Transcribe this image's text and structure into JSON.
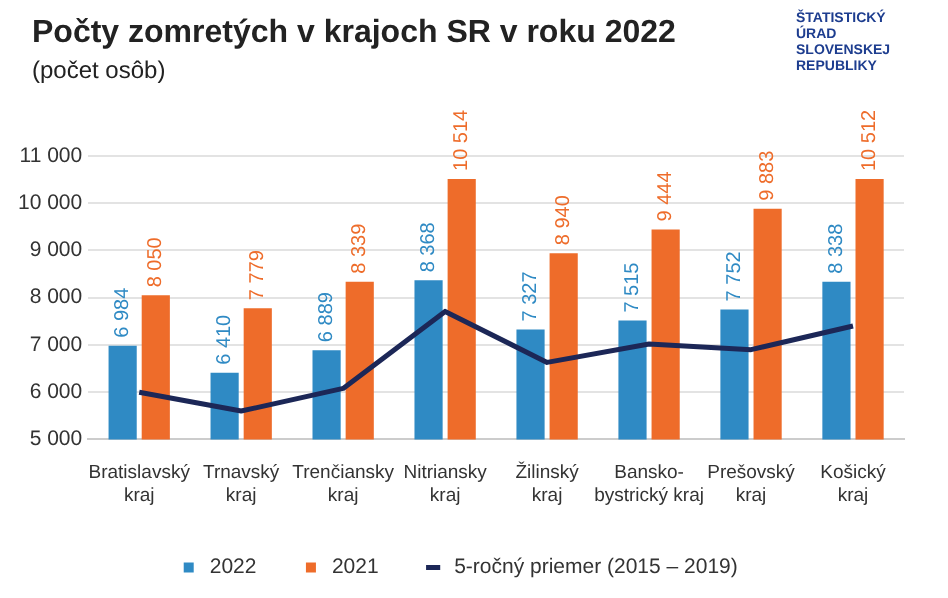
{
  "chart_data": {
    "type": "bar",
    "title": "Počty zomretých v krajoch SR v roku 2022",
    "subtitle": "(počet osôb)",
    "annotations": [
      "ŠTATISTICKÝ ÚRAD SLOVENSKEJ REPUBLIKY"
    ],
    "categories": [
      "Bratislavský kraj",
      "Trnavský kraj",
      "Trenčiansky kraj",
      "Nitriansky kraj",
      "Žilinský kraj",
      "Bansko-bystrický kraj",
      "Prešovský kraj",
      "Košický kraj"
    ],
    "series": [
      {
        "name": "2022",
        "color": "#2f8ac4",
        "values": [
          6984,
          6410,
          6889,
          8368,
          7327,
          7515,
          7752,
          8338
        ],
        "value_labels": [
          "6 984",
          "6 410",
          "6 889",
          "8 368",
          "7 327",
          "7 515",
          "7 752",
          "8 338"
        ]
      },
      {
        "name": "2021",
        "color": "#ee6c2a",
        "values": [
          8050,
          7779,
          8339,
          10514,
          8940,
          9444,
          9883,
          10512
        ],
        "value_labels": [
          "8 050",
          "7 779",
          "8 339",
          "10 514",
          "8 940",
          "9 444",
          "9 883",
          "10 512"
        ]
      },
      {
        "name": "5-ročný priemer (2015 – 2019)",
        "type": "line",
        "color": "#1c2757",
        "values": [
          6000,
          5600,
          6080,
          7710,
          6630,
          7020,
          6900,
          7400
        ]
      }
    ],
    "ylim": [
      5000,
      11000
    ],
    "yticks": [
      {
        "value": 5000,
        "label": "5 000"
      },
      {
        "value": 6000,
        "label": "6 000"
      },
      {
        "value": 7000,
        "label": "7 000"
      },
      {
        "value": 8000,
        "label": "8 000"
      },
      {
        "value": 9000,
        "label": "9 000"
      },
      {
        "value": 10000,
        "label": "10 000"
      },
      {
        "value": 11000,
        "label": "11 000"
      }
    ],
    "grid": "y",
    "legend": "bottom",
    "marker": "none",
    "line_style": "solid"
  }
}
